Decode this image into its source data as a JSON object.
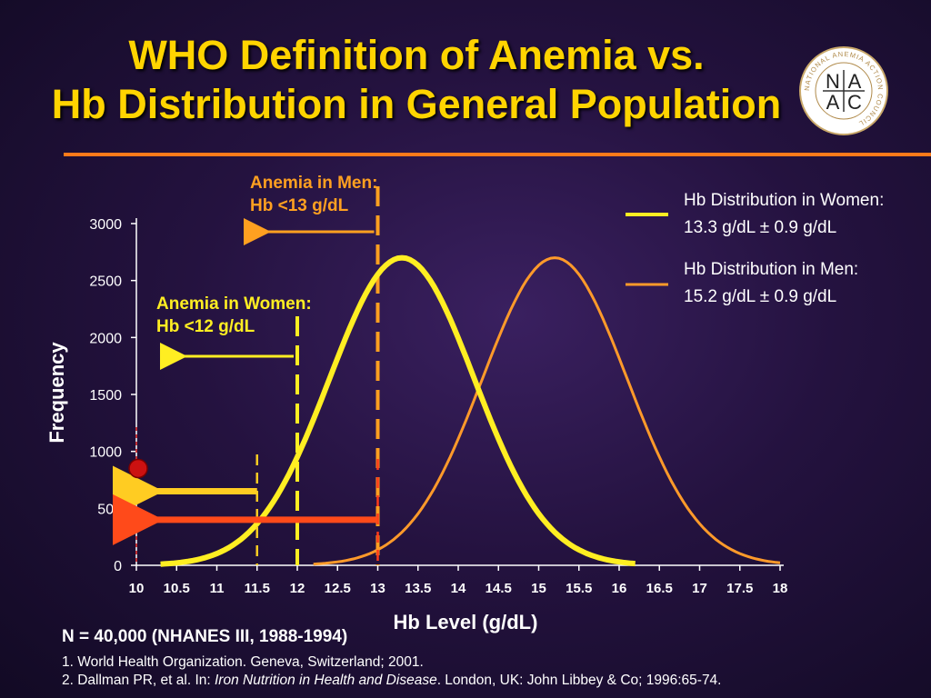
{
  "slide": {
    "title_line1": "WHO Definition of Anemia vs.",
    "title_line2": "Hb Distribution in General Population",
    "logo_text": "NAAC",
    "logo_letters": [
      "N",
      "A",
      "A",
      "C"
    ],
    "logo_ring_text": "NATIONAL ANEMIA ACTION COUNCIL"
  },
  "chart_data": {
    "type": "line",
    "xlabel": "Hb Level (g/dL)",
    "ylabel": "Frequency",
    "xlim": [
      10,
      18
    ],
    "ylim": [
      0,
      3000
    ],
    "x_ticks": [
      "10",
      "10.5",
      "11",
      "11.5",
      "12",
      "12.5",
      "13",
      "13.5",
      "14",
      "14.5",
      "15",
      "15.5",
      "16",
      "16.5",
      "17",
      "17.5",
      "18"
    ],
    "y_ticks": [
      "0",
      "500",
      "1000",
      "1500",
      "2000",
      "2500",
      "3000"
    ],
    "grid": false,
    "series": [
      {
        "name": "Hb Distribution in Women:",
        "stats": "13.3 g/dL ± 0.9 g/dL",
        "mean": 13.3,
        "sd": 0.9,
        "peak": 2700,
        "x_range": [
          10.3,
          16.2
        ],
        "color": "#ffee22"
      },
      {
        "name": "Hb Distribution in Men:",
        "stats": "15.2 g/dL ± 0.9 g/dL",
        "mean": 15.2,
        "sd": 0.9,
        "peak": 2700,
        "x_range": [
          12.2,
          18.0
        ],
        "color": "#ff9a2a"
      }
    ],
    "thresholds": [
      {
        "label_line1": "Anemia in Men:",
        "label_line2": "Hb <13 g/dL",
        "x": 13,
        "color": "#ffa020"
      },
      {
        "label_line1": "Anemia in Women:",
        "label_line2": "Hb <12 g/dL",
        "x": 12,
        "color": "#ffee22"
      }
    ],
    "annotations": {
      "women_marker_x": 11.5,
      "men_marker_x": 13,
      "women_arrow_y": 650,
      "men_arrow_y": 400,
      "point_y": 850
    }
  },
  "footer": {
    "sample": "N = 40,000 (NHANES III, 1988-1994)",
    "ref1": "1. World Health Organization. Geneva, Switzerland; 2001.",
    "ref2_pre": "2. Dallman PR, et al. In: ",
    "ref2_italic": "Iron Nutrition in Health and Disease",
    "ref2_post": ". London, UK: John Libbey & Co; 1996:65-74."
  }
}
